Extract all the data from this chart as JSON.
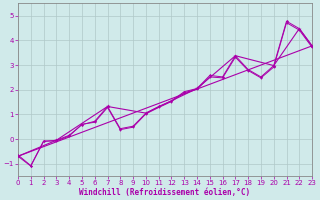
{
  "title": "",
  "xlabel": "Windchill (Refroidissement éolien,°C)",
  "ylabel": "",
  "background_color": "#d0eaea",
  "grid_color": "#b0c8c8",
  "line_color": "#aa00aa",
  "xlim": [
    0,
    23
  ],
  "ylim": [
    -1.5,
    5.5
  ],
  "xticks": [
    0,
    1,
    2,
    3,
    4,
    5,
    6,
    7,
    8,
    9,
    10,
    11,
    12,
    13,
    14,
    15,
    16,
    17,
    18,
    19,
    20,
    21,
    22,
    23
  ],
  "yticks": [
    -1,
    0,
    1,
    2,
    3,
    4,
    5
  ],
  "series0_x": [
    0,
    1,
    2,
    3,
    4,
    5,
    6,
    7,
    8,
    9,
    10,
    11,
    12,
    13,
    14,
    15,
    16,
    17,
    18,
    19,
    20,
    21,
    22,
    23
  ],
  "series0_y": [
    -0.7,
    -1.1,
    -0.1,
    -0.05,
    0.15,
    0.58,
    0.72,
    1.32,
    0.42,
    0.52,
    1.05,
    1.32,
    1.55,
    1.92,
    2.05,
    2.58,
    2.52,
    3.38,
    2.82,
    2.52,
    2.98,
    4.78,
    4.48,
    3.78
  ],
  "series1_x": [
    0,
    1,
    2,
    3,
    4,
    5,
    6,
    7,
    8,
    9,
    10,
    11,
    12,
    13,
    14,
    15,
    16,
    17,
    18,
    19,
    20,
    21,
    22,
    23
  ],
  "series1_y": [
    -0.65,
    -1.08,
    -0.08,
    -0.08,
    0.12,
    0.6,
    0.68,
    1.28,
    0.38,
    0.48,
    1.02,
    1.28,
    1.52,
    1.88,
    2.02,
    2.52,
    2.48,
    3.32,
    2.78,
    2.48,
    2.92,
    4.72,
    4.42,
    3.72
  ],
  "series2_x": [
    0,
    3,
    7,
    10,
    14,
    17,
    20,
    22,
    23
  ],
  "series2_y": [
    -0.7,
    -0.05,
    1.32,
    1.05,
    2.05,
    3.38,
    2.98,
    4.48,
    3.78
  ],
  "trend_x": [
    0,
    23
  ],
  "trend_y": [
    -0.7,
    3.78
  ],
  "xlabel_fontsize": 5.5,
  "tick_fontsize": 5.0
}
